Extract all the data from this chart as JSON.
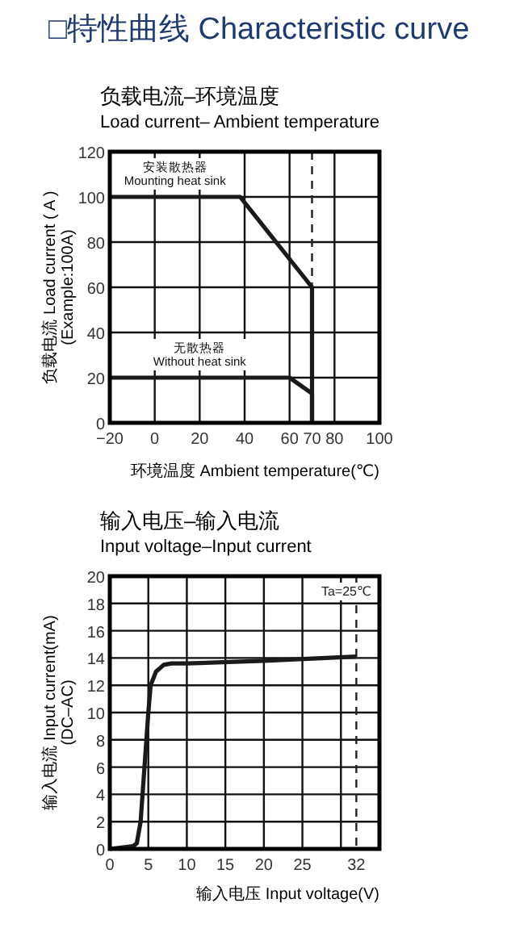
{
  "chart_data": [
    {
      "type": "line",
      "title": "负载电流–环境温度",
      "subtitle": "Load current– Ambient temperature",
      "xlabel": "环境温度 Ambient temperature(℃)",
      "ylabel": "负载电流 Load current ( A )\n(Example:100A)",
      "annotations": [
        "□特性曲线 Characteristic curve"
      ],
      "xlim": [
        -20,
        100
      ],
      "xticks": [
        -20,
        0,
        20,
        40,
        60,
        70,
        80,
        100
      ],
      "ylim": [
        0,
        120
      ],
      "yticks": [
        0,
        20,
        40,
        60,
        80,
        100,
        120
      ],
      "grid": true,
      "ref_lines": [
        {
          "axis": "x",
          "value": 70,
          "line_style": "dashed",
          "color": "#222222"
        }
      ],
      "series": [
        {
          "name": "安装散热器\nMounting heat sink",
          "color": "#1a1a1a",
          "x": [
            -20,
            38,
            70,
            70
          ],
          "values": [
            100,
            100,
            60,
            0
          ]
        },
        {
          "name": "无散热器\nWithout heat sink",
          "color": "#1a1a1a",
          "x": [
            -20,
            60,
            70,
            70
          ],
          "values": [
            20,
            20,
            13,
            0
          ]
        }
      ]
    },
    {
      "type": "line",
      "title": "输入电压–输入电流",
      "subtitle": "Input voltage–Input current",
      "xlabel": "输入电压 Input voltage(V)",
      "ylabel": "输入电流 Input current(mA)\n(DC–AC)",
      "annotations": [
        "Ta=25℃"
      ],
      "xlim": [
        0,
        35
      ],
      "xticks": [
        0,
        5,
        10,
        15,
        20,
        25,
        {
          "value": 30,
          "label": null
        },
        32
      ],
      "ylim": [
        0,
        20
      ],
      "yticks": [
        0,
        2,
        4,
        6,
        8,
        10,
        12,
        14,
        16,
        18,
        20
      ],
      "grid": true,
      "ref_lines": [
        {
          "axis": "x",
          "value": 32,
          "line_style": "dashed",
          "color": "#222222"
        }
      ],
      "series": [
        {
          "color": "#1a1a1a",
          "x": [
            0,
            3,
            3.5,
            4,
            4.5,
            5,
            5.3,
            6,
            7,
            8,
            10,
            20,
            32
          ],
          "values": [
            0,
            0.2,
            0.4,
            2,
            6,
            10,
            12,
            13,
            13.5,
            13.6,
            13.6,
            13.8,
            14.1
          ]
        }
      ]
    }
  ]
}
